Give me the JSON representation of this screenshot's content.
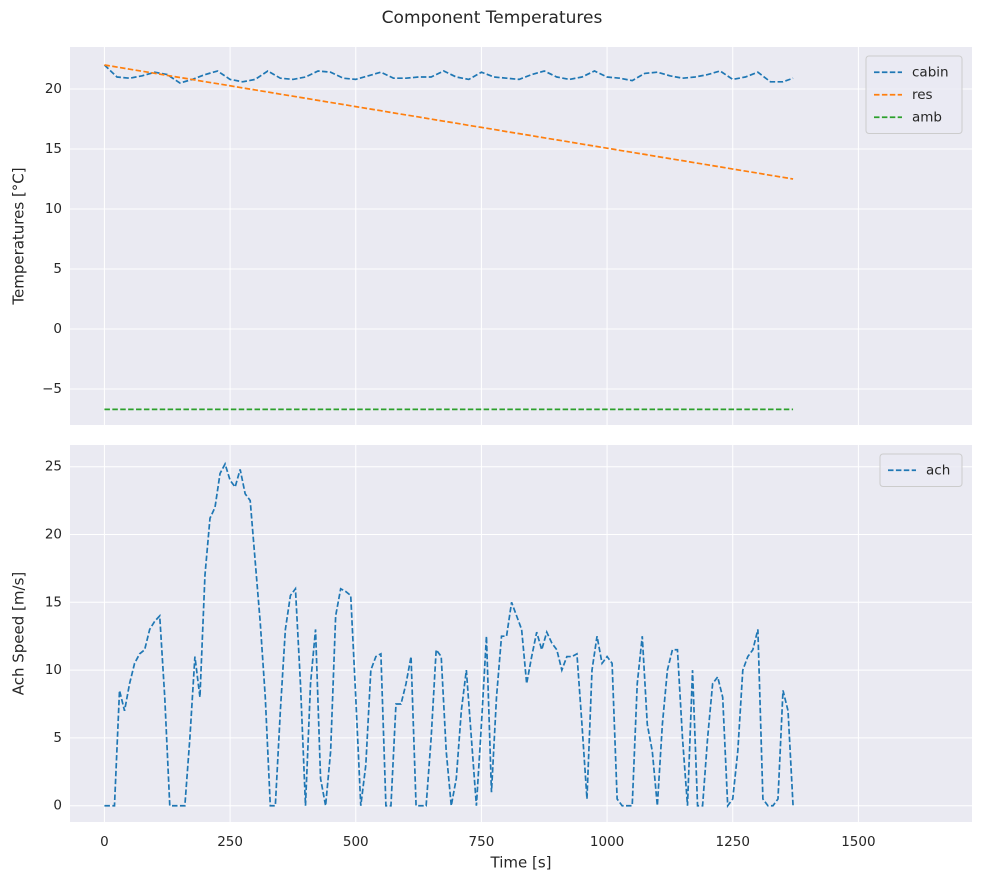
{
  "chart_data": [
    {
      "type": "line",
      "title": "Component Temperatures",
      "ylabel": "Temperatures [°C]",
      "x": [
        0,
        25,
        50,
        75,
        100,
        125,
        150,
        175,
        200,
        225,
        250,
        275,
        300,
        325,
        350,
        375,
        400,
        425,
        450,
        475,
        500,
        525,
        550,
        575,
        600,
        625,
        650,
        675,
        700,
        725,
        750,
        775,
        800,
        825,
        850,
        875,
        900,
        925,
        950,
        975,
        1000,
        1025,
        1050,
        1075,
        1100,
        1125,
        1150,
        1175,
        1200,
        1225,
        1250,
        1275,
        1300,
        1325,
        1350,
        1370
      ],
      "series": [
        {
          "name": "cabin",
          "color": "#1f77b4",
          "values": [
            22,
            21.0,
            20.9,
            21.1,
            21.4,
            21.2,
            20.5,
            20.8,
            21.2,
            21.5,
            20.8,
            20.6,
            20.8,
            21.5,
            20.9,
            20.8,
            21.0,
            21.5,
            21.4,
            20.9,
            20.8,
            21.1,
            21.4,
            20.9,
            20.9,
            21.0,
            21.0,
            21.5,
            21.0,
            20.8,
            21.4,
            21.0,
            20.9,
            20.8,
            21.2,
            21.5,
            21.0,
            20.8,
            21.0,
            21.5,
            21.0,
            20.9,
            20.7,
            21.3,
            21.4,
            21.1,
            20.9,
            21.0,
            21.2,
            21.5,
            20.8,
            21.0,
            21.4,
            20.6,
            20.6,
            20.9
          ]
        },
        {
          "name": "res",
          "color": "#ff7f0e",
          "values": [
            22.0,
            21.83,
            21.65,
            21.48,
            21.31,
            21.13,
            20.96,
            20.79,
            20.61,
            20.44,
            20.27,
            20.09,
            19.92,
            19.75,
            19.57,
            19.4,
            19.23,
            19.05,
            18.88,
            18.71,
            18.53,
            18.36,
            18.19,
            18.01,
            17.84,
            17.67,
            17.49,
            17.32,
            17.15,
            16.97,
            16.8,
            16.63,
            16.45,
            16.28,
            16.11,
            15.93,
            15.76,
            15.59,
            15.41,
            15.24,
            15.07,
            14.89,
            14.72,
            14.55,
            14.37,
            14.2,
            14.03,
            13.85,
            13.68,
            13.51,
            13.33,
            13.16,
            12.99,
            12.81,
            12.64,
            12.5
          ]
        },
        {
          "name": "amb",
          "color": "#2ca02c",
          "values": [
            -6.7,
            -6.7,
            -6.7,
            -6.7,
            -6.7,
            -6.7,
            -6.7,
            -6.7,
            -6.7,
            -6.7,
            -6.7,
            -6.7,
            -6.7,
            -6.7,
            -6.7,
            -6.7,
            -6.7,
            -6.7,
            -6.7,
            -6.7,
            -6.7,
            -6.7,
            -6.7,
            -6.7,
            -6.7,
            -6.7,
            -6.7,
            -6.7,
            -6.7,
            -6.7,
            -6.7,
            -6.7,
            -6.7,
            -6.7,
            -6.7,
            -6.7,
            -6.7,
            -6.7,
            -6.7,
            -6.7,
            -6.7,
            -6.7,
            -6.7,
            -6.7,
            -6.7,
            -6.7,
            -6.7,
            -6.7,
            -6.7,
            -6.7,
            -6.7,
            -6.7,
            -6.7,
            -6.7,
            -6.7,
            -6.7
          ]
        }
      ],
      "ylim": [
        -8,
        23.5
      ],
      "yticks": [
        {
          "value": -5,
          "label": "−5"
        },
        0,
        5,
        10,
        15,
        20
      ],
      "grid": true,
      "legend": "upper right"
    },
    {
      "type": "line",
      "xlabel": "Time [s]",
      "ylabel": "Ach Speed [m/s]",
      "x": [
        0,
        10,
        20,
        30,
        40,
        50,
        60,
        70,
        80,
        90,
        100,
        110,
        120,
        130,
        140,
        150,
        160,
        170,
        180,
        190,
        200,
        210,
        220,
        230,
        240,
        250,
        260,
        270,
        280,
        290,
        300,
        310,
        320,
        330,
        340,
        350,
        360,
        370,
        380,
        390,
        400,
        410,
        420,
        430,
        440,
        450,
        460,
        470,
        480,
        490,
        500,
        510,
        520,
        530,
        540,
        550,
        560,
        570,
        580,
        590,
        600,
        610,
        620,
        630,
        640,
        650,
        660,
        670,
        680,
        690,
        700,
        710,
        720,
        730,
        740,
        750,
        760,
        770,
        780,
        790,
        800,
        810,
        820,
        830,
        840,
        850,
        860,
        870,
        880,
        890,
        900,
        910,
        920,
        930,
        940,
        950,
        960,
        970,
        980,
        990,
        1000,
        1010,
        1020,
        1030,
        1040,
        1050,
        1060,
        1070,
        1080,
        1090,
        1100,
        1110,
        1120,
        1130,
        1140,
        1150,
        1160,
        1170,
        1180,
        1190,
        1200,
        1210,
        1220,
        1230,
        1240,
        1250,
        1260,
        1270,
        1280,
        1290,
        1300,
        1310,
        1320,
        1330,
        1340,
        1350,
        1360,
        1370
      ],
      "series": [
        {
          "name": "ach",
          "color": "#1f77b4",
          "values": [
            0,
            0,
            0,
            8.5,
            7,
            9,
            10.5,
            11.2,
            11.5,
            13,
            13.6,
            14,
            8,
            0,
            0,
            0,
            0,
            5,
            11,
            8,
            17,
            21.2,
            22,
            24.5,
            25.2,
            24,
            23.5,
            24.8,
            23,
            22.5,
            18,
            13.5,
            8,
            0,
            0,
            7,
            13,
            15.5,
            16,
            9,
            0,
            9,
            13,
            2,
            0,
            4,
            14,
            16,
            15.8,
            15.5,
            8,
            0,
            3,
            10,
            11,
            11.2,
            0,
            0,
            7.5,
            7.5,
            9,
            11,
            0,
            0,
            0,
            5,
            11.5,
            11,
            4,
            0,
            2,
            7,
            10,
            5,
            0,
            6,
            12.5,
            1,
            8,
            12.5,
            12.5,
            15,
            14,
            13,
            9,
            11,
            12.8,
            11.5,
            12.8,
            12,
            11.5,
            10,
            11,
            11,
            11.2,
            6,
            0.5,
            10,
            12.5,
            10.5,
            11,
            10.5,
            0.5,
            0,
            0,
            0,
            9,
            12.5,
            6,
            4,
            0,
            6,
            10,
            11.5,
            11.5,
            5,
            0,
            10,
            0,
            0,
            5,
            9,
            9.5,
            8,
            0,
            0.5,
            4,
            10,
            11,
            11.5,
            13,
            0.5,
            0,
            0,
            0.5,
            8.5,
            7,
            0
          ]
        }
      ],
      "xlim": [
        -68.5,
        1726
      ],
      "xticks": [
        0,
        250,
        500,
        750,
        1000,
        1250,
        1500
      ],
      "ylim": [
        -1.2,
        26.6
      ],
      "yticks": [
        0,
        5,
        10,
        15,
        20,
        25
      ],
      "grid": true,
      "legend": "upper right"
    }
  ]
}
